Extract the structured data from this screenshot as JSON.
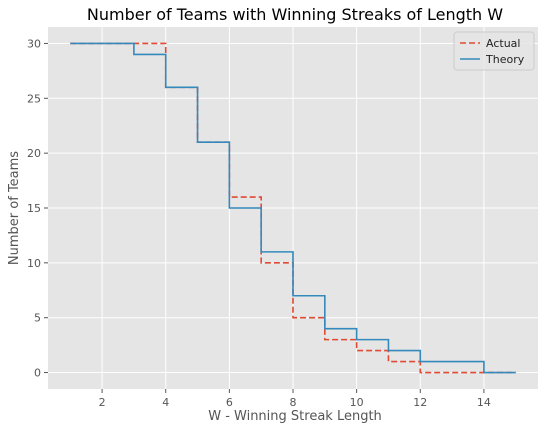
{
  "chart_data": {
    "type": "line",
    "drawstyle": "steps-post",
    "title": "Number of Teams with Winning Streaks of Length W",
    "xlabel": "W - Winning Streak Length",
    "ylabel": "Number of Teams",
    "xlim": [
      0.3,
      15.7
    ],
    "ylim": [
      -1.5,
      31.5
    ],
    "xticks": [
      2,
      4,
      6,
      8,
      10,
      12,
      14
    ],
    "yticks": [
      0,
      5,
      10,
      15,
      20,
      25,
      30
    ],
    "grid": true,
    "legend": "top-right",
    "x": [
      1,
      2,
      3,
      4,
      5,
      6,
      7,
      8,
      9,
      10,
      11,
      12,
      13,
      14,
      15
    ],
    "series": [
      {
        "name": "Actual",
        "style": "dashed",
        "color": "#e24a33",
        "values": [
          30,
          30,
          30,
          26,
          21,
          16,
          10,
          5,
          3,
          2,
          1,
          0,
          0,
          0,
          0
        ]
      },
      {
        "name": "Theory",
        "style": "solid",
        "color": "#348abd",
        "values": [
          30,
          30,
          29,
          26,
          21,
          15,
          11,
          7,
          4,
          3,
          2,
          1,
          1,
          0,
          0
        ]
      }
    ]
  },
  "style": {
    "plot_background": "#e5e5e5",
    "grid_color": "#ffffff"
  }
}
